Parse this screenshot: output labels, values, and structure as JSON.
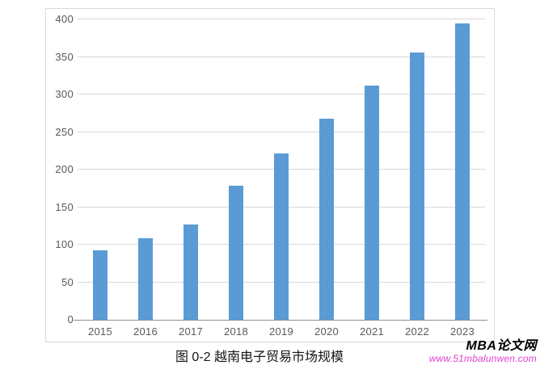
{
  "chart_data": {
    "type": "bar",
    "title": "",
    "categories": [
      "2015",
      "2016",
      "2017",
      "2018",
      "2019",
      "2020",
      "2021",
      "2022",
      "2023"
    ],
    "values": [
      92,
      109,
      127,
      179,
      221,
      268,
      312,
      356,
      395
    ],
    "xlabel": "",
    "ylabel": "",
    "ylim": [
      0,
      400
    ],
    "yticks": [
      0,
      50,
      100,
      150,
      200,
      250,
      300,
      350,
      400
    ],
    "grid": true,
    "legend": false,
    "bar_color": "#5b9bd5",
    "gridline_color": "#d9d9d9",
    "axis_line_color": "#8f8f8f",
    "tick_label_color": "#595959",
    "frame_border_color": "#d9d9d9"
  },
  "caption": "图 0-2 越南电子贸易市场规模",
  "watermark": {
    "brand": "MBA论文网",
    "brand_color": "#000000",
    "url": "www.51mbalunwen.com",
    "url_color": "#e23fd3"
  }
}
